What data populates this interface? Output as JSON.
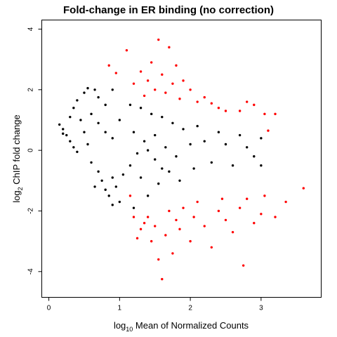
{
  "chart_data": {
    "type": "scatter",
    "title": "Fold-change in ER binding (no correction)",
    "xlabel": {
      "prefix": "log",
      "subscript": "10",
      "rest": " Mean of Normalized Counts"
    },
    "ylabel": {
      "prefix": "log",
      "subscript": "2",
      "rest": " ChIP fold change"
    },
    "xlim": [
      -0.1,
      3.85
    ],
    "ylim": [
      -4.85,
      4.3
    ],
    "x_ticks": [
      0,
      1,
      2,
      3
    ],
    "y_ticks": [
      -4,
      -2,
      0,
      2,
      4
    ],
    "grid": false,
    "legend": "none",
    "colors": {
      "not_significant": "#000000",
      "significant": "#ff0000"
    },
    "series": [
      {
        "color_key": "not_significant",
        "points": [
          [
            0.15,
            0.85
          ],
          [
            0.2,
            0.7
          ],
          [
            0.25,
            0.5
          ],
          [
            0.3,
            0.3
          ],
          [
            0.35,
            0.1
          ],
          [
            0.4,
            -0.05
          ],
          [
            0.2,
            0.55
          ],
          [
            0.3,
            1.1
          ],
          [
            0.35,
            1.4
          ],
          [
            0.4,
            1.65
          ],
          [
            0.5,
            1.9
          ],
          [
            0.55,
            2.05
          ],
          [
            0.65,
            2.0
          ],
          [
            0.7,
            1.75
          ],
          [
            0.8,
            1.5
          ],
          [
            0.9,
            2.0
          ],
          [
            0.6,
            1.2
          ],
          [
            0.7,
            0.9
          ],
          [
            0.8,
            0.6
          ],
          [
            0.9,
            0.4
          ],
          [
            0.5,
            0.6
          ],
          [
            0.45,
            1.0
          ],
          [
            0.6,
            -0.4
          ],
          [
            0.7,
            -0.7
          ],
          [
            0.75,
            -1.0
          ],
          [
            0.8,
            -1.3
          ],
          [
            0.85,
            -1.5
          ],
          [
            0.9,
            -1.8
          ],
          [
            0.65,
            -1.2
          ],
          [
            0.95,
            -1.2
          ],
          [
            0.55,
            0.2
          ],
          [
            1.0,
            1.0
          ],
          [
            1.05,
            -0.8
          ],
          [
            1.0,
            -1.7
          ],
          [
            0.9,
            -0.9
          ],
          [
            1.15,
            1.5
          ],
          [
            1.2,
            0.6
          ],
          [
            1.15,
            -0.5
          ],
          [
            1.2,
            -1.9
          ],
          [
            1.3,
            1.4
          ],
          [
            1.35,
            0.3
          ],
          [
            1.3,
            -0.9
          ],
          [
            1.4,
            -1.5
          ],
          [
            1.45,
            1.2
          ],
          [
            1.5,
            0.5
          ],
          [
            1.5,
            -0.3
          ],
          [
            1.55,
            -1.1
          ],
          [
            1.6,
            1.1
          ],
          [
            1.65,
            0.1
          ],
          [
            1.7,
            -0.7
          ],
          [
            1.75,
            0.9
          ],
          [
            1.8,
            -0.2
          ],
          [
            1.85,
            -1.0
          ],
          [
            1.9,
            0.7
          ],
          [
            2.0,
            0.2
          ],
          [
            2.05,
            -0.6
          ],
          [
            2.1,
            0.8
          ],
          [
            2.2,
            0.3
          ],
          [
            2.3,
            -0.4
          ],
          [
            2.4,
            0.6
          ],
          [
            2.5,
            0.2
          ],
          [
            2.6,
            -0.5
          ],
          [
            2.7,
            0.5
          ],
          [
            2.8,
            0.1
          ],
          [
            2.9,
            -0.2
          ],
          [
            3.0,
            -0.5
          ],
          [
            3.0,
            0.4
          ],
          [
            1.25,
            -0.1
          ],
          [
            1.4,
            0.0
          ],
          [
            1.6,
            -0.6
          ]
        ]
      },
      {
        "color_key": "significant",
        "points": [
          [
            0.85,
            2.8
          ],
          [
            0.95,
            2.55
          ],
          [
            1.1,
            3.3
          ],
          [
            1.2,
            2.2
          ],
          [
            1.3,
            2.6
          ],
          [
            1.35,
            1.8
          ],
          [
            1.4,
            2.3
          ],
          [
            1.45,
            2.9
          ],
          [
            1.5,
            2.0
          ],
          [
            1.55,
            3.65
          ],
          [
            1.6,
            2.5
          ],
          [
            1.65,
            1.9
          ],
          [
            1.7,
            3.4
          ],
          [
            1.75,
            2.2
          ],
          [
            1.8,
            2.8
          ],
          [
            1.85,
            1.7
          ],
          [
            1.9,
            2.3
          ],
          [
            2.0,
            2.0
          ],
          [
            2.1,
            1.6
          ],
          [
            2.2,
            1.75
          ],
          [
            2.3,
            1.55
          ],
          [
            2.4,
            1.4
          ],
          [
            2.5,
            1.3
          ],
          [
            2.7,
            1.3
          ],
          [
            2.8,
            1.6
          ],
          [
            2.9,
            1.5
          ],
          [
            3.05,
            1.2
          ],
          [
            3.2,
            1.2
          ],
          [
            3.1,
            0.65
          ],
          [
            1.2,
            -2.2
          ],
          [
            1.3,
            -2.6
          ],
          [
            1.4,
            -2.2
          ],
          [
            1.45,
            -3.0
          ],
          [
            1.5,
            -2.5
          ],
          [
            1.55,
            -3.6
          ],
          [
            1.6,
            -4.25
          ],
          [
            1.65,
            -2.8
          ],
          [
            1.7,
            -2.0
          ],
          [
            1.75,
            -3.4
          ],
          [
            1.8,
            -2.3
          ],
          [
            1.85,
            -2.6
          ],
          [
            1.9,
            -1.9
          ],
          [
            2.0,
            -3.0
          ],
          [
            2.05,
            -2.2
          ],
          [
            2.1,
            -1.7
          ],
          [
            2.2,
            -2.5
          ],
          [
            2.3,
            -3.2
          ],
          [
            2.4,
            -2.0
          ],
          [
            2.45,
            -1.6
          ],
          [
            2.5,
            -2.3
          ],
          [
            2.6,
            -2.7
          ],
          [
            2.7,
            -1.9
          ],
          [
            2.75,
            -3.8
          ],
          [
            2.8,
            -1.6
          ],
          [
            2.9,
            -2.4
          ],
          [
            3.0,
            -2.1
          ],
          [
            3.05,
            -1.5
          ],
          [
            3.2,
            -2.2
          ],
          [
            3.35,
            -1.7
          ],
          [
            3.6,
            -1.25
          ],
          [
            1.15,
            -1.5
          ],
          [
            1.25,
            -2.9
          ],
          [
            1.35,
            -2.4
          ]
        ]
      }
    ]
  }
}
